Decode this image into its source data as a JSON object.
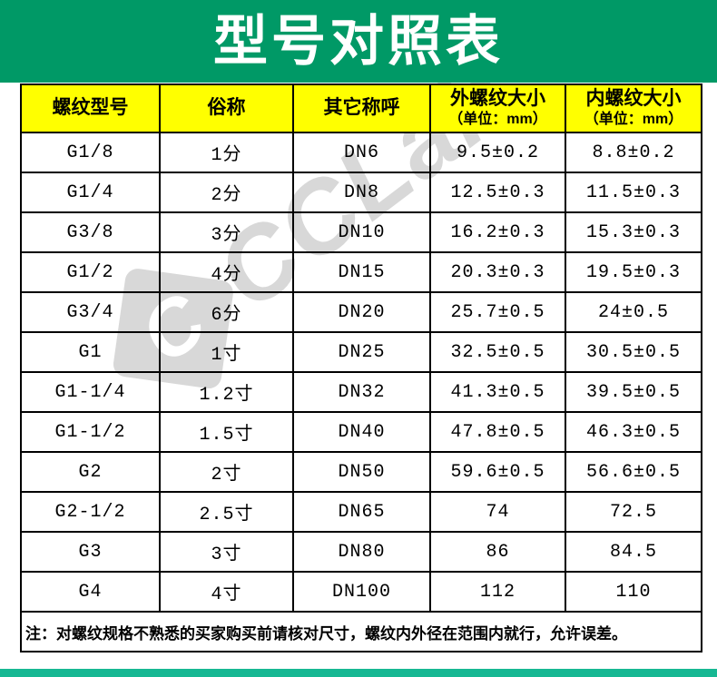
{
  "page": {
    "title": "型号对照表",
    "note": "注：对螺纹规格不熟悉的买家购买前请核对尺寸，螺纹内外径在范围内就行，允许误差。",
    "watermark": "CCLair.",
    "watermark_logo_glyph": "C",
    "colors": {
      "banner_green": "#009966",
      "footer_teal": "#17b893",
      "header_yellow": "#ffff00",
      "border_black": "#000000",
      "watermark_gray": "#d8d8d8",
      "title_white": "#ffffff"
    }
  },
  "table": {
    "columns": [
      {
        "label": "螺纹型号",
        "sub": ""
      },
      {
        "label": "俗称",
        "sub": ""
      },
      {
        "label": "其它称呼",
        "sub": ""
      },
      {
        "label": "外螺纹大小",
        "sub": "（单位：mm）"
      },
      {
        "label": "内螺纹大小",
        "sub": "（单位：mm）"
      }
    ],
    "rows": [
      [
        "G1/8",
        "1分",
        "DN6",
        "9.5±0.2",
        "8.8±0.2"
      ],
      [
        "G1/4",
        "2分",
        "DN8",
        "12.5±0.3",
        "11.5±0.3"
      ],
      [
        "G3/8",
        "3分",
        "DN10",
        "16.2±0.3",
        "15.3±0.3"
      ],
      [
        "G1/2",
        "4分",
        "DN15",
        "20.3±0.3",
        "19.5±0.3"
      ],
      [
        "G3/4",
        "6分",
        "DN20",
        "25.7±0.5",
        "24±0.5"
      ],
      [
        "G1",
        "1寸",
        "DN25",
        "32.5±0.5",
        "30.5±0.5"
      ],
      [
        "G1-1/4",
        "1.2寸",
        "DN32",
        "41.3±0.5",
        "39.5±0.5"
      ],
      [
        "G1-1/2",
        "1.5寸",
        "DN40",
        "47.8±0.5",
        "46.3±0.5"
      ],
      [
        "G2",
        "2寸",
        "DN50",
        "59.6±0.5",
        "56.6±0.5"
      ],
      [
        "G2-1/2",
        "2.5寸",
        "DN65",
        "74",
        "72.5"
      ],
      [
        "G3",
        "3寸",
        "DN80",
        "86",
        "84.5"
      ],
      [
        "G4",
        "4寸",
        "DN100",
        "112",
        "110"
      ]
    ]
  }
}
